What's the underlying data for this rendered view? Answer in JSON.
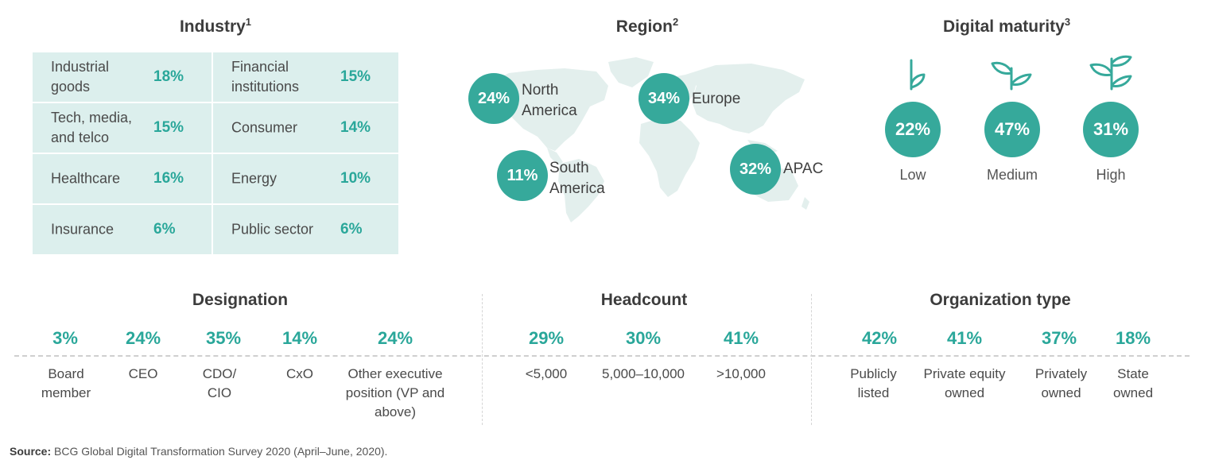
{
  "industry": {
    "title": "Industry",
    "footnote": "1",
    "items": [
      {
        "label": "Industrial goods",
        "value": "18%"
      },
      {
        "label": "Financial institutions",
        "value": "15%"
      },
      {
        "label": "Tech, media, and telco",
        "value": "15%"
      },
      {
        "label": "Consumer",
        "value": "14%"
      },
      {
        "label": "Healthcare",
        "value": "16%"
      },
      {
        "label": "Energy",
        "value": "10%"
      },
      {
        "label": "Insurance",
        "value": "6%"
      },
      {
        "label": "Public sector",
        "value": "6%"
      }
    ]
  },
  "region": {
    "title": "Region",
    "footnote": "2",
    "items": [
      {
        "label": "North America",
        "value": "24%"
      },
      {
        "label": "Europe",
        "value": "34%"
      },
      {
        "label": "South America",
        "value": "11%"
      },
      {
        "label": "APAC",
        "value": "32%"
      }
    ]
  },
  "maturity": {
    "title": "Digital maturity",
    "footnote": "3",
    "items": [
      {
        "label": "Low",
        "value": "22%",
        "icon": "sprout-one-leaf-icon"
      },
      {
        "label": "Medium",
        "value": "47%",
        "icon": "sprout-two-leaves-icon"
      },
      {
        "label": "High",
        "value": "31%",
        "icon": "sprout-three-leaves-icon"
      }
    ]
  },
  "designation": {
    "title": "Designation",
    "items": [
      {
        "label": "Board member",
        "value": "3%"
      },
      {
        "label": "CEO",
        "value": "24%"
      },
      {
        "label": "CDO/ CIO",
        "value": "35%"
      },
      {
        "label": "CxO",
        "value": "14%"
      },
      {
        "label": "Other executive position (VP and above)",
        "value": "24%"
      }
    ]
  },
  "headcount": {
    "title": "Headcount",
    "items": [
      {
        "label": "<5,000",
        "value": "29%"
      },
      {
        "label": "5,000–10,000",
        "value": "30%"
      },
      {
        "label": ">10,000",
        "value": "41%"
      }
    ]
  },
  "orgtype": {
    "title": "Organization type",
    "items": [
      {
        "label": "Publicly listed",
        "value": "42%"
      },
      {
        "label": "Private equity owned",
        "value": "41%"
      },
      {
        "label": "Privately owned",
        "value": "37%"
      },
      {
        "label": "State owned",
        "value": "18%"
      }
    ]
  },
  "source": {
    "label": "Source:",
    "text": "BCG Global Digital Transformation Survey 2020 (April–June, 2020)."
  },
  "colors": {
    "accent": "#36a99b",
    "accent_text": "#2aa79a",
    "cell_bg": "#dcefed",
    "map": "#e3efed"
  }
}
